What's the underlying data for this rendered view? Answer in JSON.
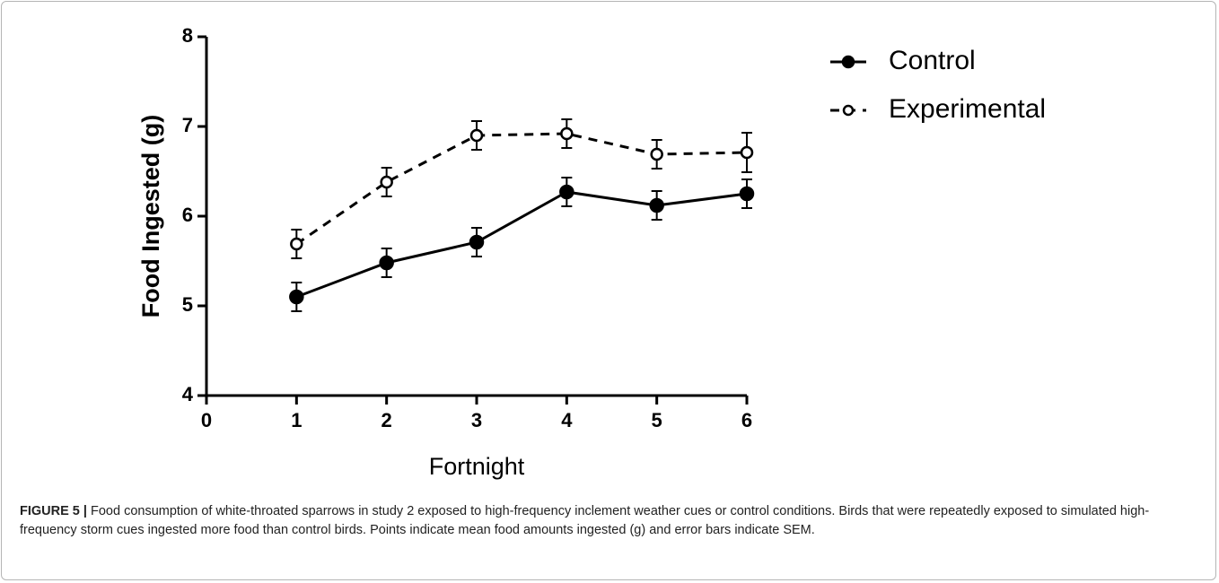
{
  "chart_data": {
    "type": "line",
    "xlabel": "Fortnight",
    "ylabel": "Food Ingested (g)",
    "x": [
      1,
      2,
      3,
      4,
      5,
      6
    ],
    "xlim": [
      0,
      6
    ],
    "xticks": [
      0,
      1,
      2,
      3,
      4,
      5,
      6
    ],
    "ylim": [
      4,
      8
    ],
    "yticks": [
      4,
      5,
      6,
      7,
      8
    ],
    "legend": "upper right",
    "series": [
      {
        "name": "Control",
        "color": "#000000",
        "linestyle": "solid",
        "marker": "filled",
        "values": [
          5.1,
          5.48,
          5.71,
          6.27,
          6.12,
          6.25
        ],
        "errors": [
          0.16,
          0.16,
          0.16,
          0.16,
          0.16,
          0.16
        ]
      },
      {
        "name": "Experimental",
        "color": "#000000",
        "linestyle": "dashed",
        "marker": "open",
        "values": [
          5.69,
          6.38,
          6.9,
          6.92,
          6.69,
          6.71
        ],
        "errors": [
          0.16,
          0.16,
          0.16,
          0.16,
          0.16,
          0.22
        ]
      }
    ]
  },
  "caption": {
    "label": "FIGURE 5 |",
    "text": " Food consumption of white-throated sparrows in study 2 exposed to high-frequency inclement weather cues or control conditions. Birds that were repeatedly exposed to simulated high-frequency storm cues ingested more food than control birds. Points indicate mean food amounts ingested (g) and error bars indicate SEM."
  }
}
